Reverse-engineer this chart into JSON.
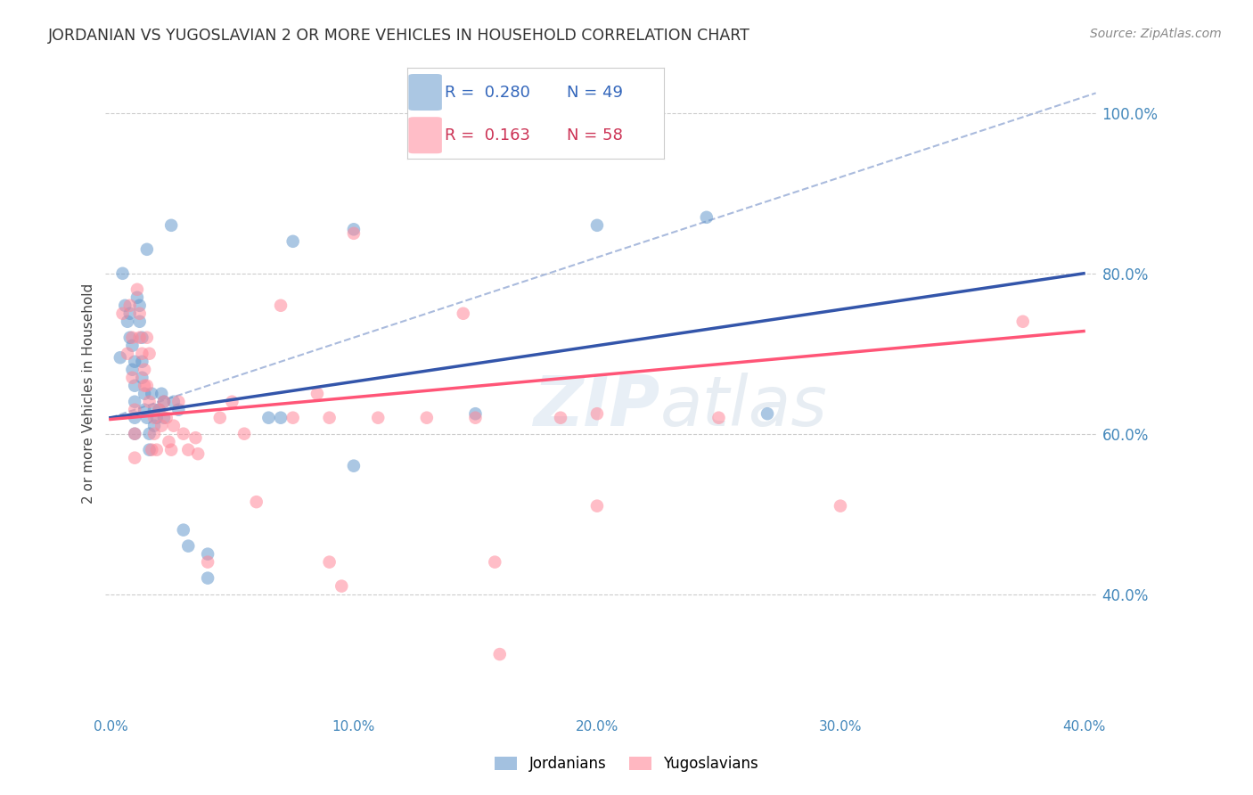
{
  "title": "JORDANIAN VS YUGOSLAVIAN 2 OR MORE VEHICLES IN HOUSEHOLD CORRELATION CHART",
  "source": "Source: ZipAtlas.com",
  "xlabel_legend1": "Jordanians",
  "xlabel_legend2": "Yugoslavians",
  "ylabel": "2 or more Vehicles in Household",
  "xlim": [
    -0.002,
    0.405
  ],
  "ylim": [
    0.25,
    1.05
  ],
  "yticks": [
    0.4,
    0.6,
    0.8,
    1.0
  ],
  "ytick_labels": [
    "40.0%",
    "60.0%",
    "80.0%",
    "100.0%"
  ],
  "xticks": [
    0.0,
    0.1,
    0.2,
    0.3,
    0.4
  ],
  "xtick_labels": [
    "0.0%",
    "10.0%",
    "20.0%",
    "30.0%",
    "40.0%"
  ],
  "R_blue": 0.28,
  "N_blue": 49,
  "R_pink": 0.163,
  "N_pink": 58,
  "watermark": "ZIPatlas",
  "blue_color": "#6699CC",
  "pink_color": "#FF8899",
  "blue_line_color": "#3355AA",
  "pink_line_color": "#FF5577",
  "blue_line_x": [
    0.0,
    0.4
  ],
  "blue_line_y": [
    0.62,
    0.8
  ],
  "pink_line_x": [
    0.0,
    0.4
  ],
  "pink_line_y": [
    0.618,
    0.728
  ],
  "ref_line_x": [
    0.0,
    0.405
  ],
  "ref_line_y": [
    0.62,
    1.025
  ],
  "blue_scatter": [
    [
      0.004,
      0.695
    ],
    [
      0.005,
      0.8
    ],
    [
      0.006,
      0.76
    ],
    [
      0.007,
      0.74
    ],
    [
      0.008,
      0.75
    ],
    [
      0.008,
      0.72
    ],
    [
      0.009,
      0.68
    ],
    [
      0.009,
      0.71
    ],
    [
      0.01,
      0.69
    ],
    [
      0.01,
      0.66
    ],
    [
      0.01,
      0.64
    ],
    [
      0.01,
      0.62
    ],
    [
      0.01,
      0.6
    ],
    [
      0.011,
      0.77
    ],
    [
      0.012,
      0.76
    ],
    [
      0.012,
      0.74
    ],
    [
      0.013,
      0.72
    ],
    [
      0.013,
      0.69
    ],
    [
      0.013,
      0.67
    ],
    [
      0.014,
      0.65
    ],
    [
      0.014,
      0.63
    ],
    [
      0.015,
      0.83
    ],
    [
      0.015,
      0.62
    ],
    [
      0.016,
      0.6
    ],
    [
      0.016,
      0.58
    ],
    [
      0.017,
      0.65
    ],
    [
      0.018,
      0.63
    ],
    [
      0.018,
      0.61
    ],
    [
      0.019,
      0.62
    ],
    [
      0.02,
      0.63
    ],
    [
      0.021,
      0.65
    ],
    [
      0.022,
      0.64
    ],
    [
      0.022,
      0.62
    ],
    [
      0.025,
      0.86
    ],
    [
      0.026,
      0.64
    ],
    [
      0.028,
      0.63
    ],
    [
      0.03,
      0.48
    ],
    [
      0.032,
      0.46
    ],
    [
      0.04,
      0.45
    ],
    [
      0.04,
      0.42
    ],
    [
      0.065,
      0.62
    ],
    [
      0.07,
      0.62
    ],
    [
      0.075,
      0.84
    ],
    [
      0.1,
      0.855
    ],
    [
      0.1,
      0.56
    ],
    [
      0.15,
      0.625
    ],
    [
      0.2,
      0.86
    ],
    [
      0.245,
      0.87
    ],
    [
      0.27,
      0.625
    ]
  ],
  "pink_scatter": [
    [
      0.005,
      0.75
    ],
    [
      0.007,
      0.7
    ],
    [
      0.008,
      0.76
    ],
    [
      0.009,
      0.72
    ],
    [
      0.009,
      0.67
    ],
    [
      0.01,
      0.63
    ],
    [
      0.01,
      0.6
    ],
    [
      0.01,
      0.57
    ],
    [
      0.011,
      0.78
    ],
    [
      0.012,
      0.75
    ],
    [
      0.012,
      0.72
    ],
    [
      0.013,
      0.7
    ],
    [
      0.014,
      0.68
    ],
    [
      0.014,
      0.66
    ],
    [
      0.015,
      0.72
    ],
    [
      0.015,
      0.66
    ],
    [
      0.016,
      0.64
    ],
    [
      0.016,
      0.7
    ],
    [
      0.017,
      0.58
    ],
    [
      0.018,
      0.62
    ],
    [
      0.018,
      0.6
    ],
    [
      0.019,
      0.58
    ],
    [
      0.02,
      0.63
    ],
    [
      0.021,
      0.61
    ],
    [
      0.022,
      0.64
    ],
    [
      0.023,
      0.62
    ],
    [
      0.024,
      0.59
    ],
    [
      0.025,
      0.58
    ],
    [
      0.026,
      0.61
    ],
    [
      0.028,
      0.64
    ],
    [
      0.03,
      0.6
    ],
    [
      0.032,
      0.58
    ],
    [
      0.035,
      0.595
    ],
    [
      0.036,
      0.575
    ],
    [
      0.04,
      0.44
    ],
    [
      0.045,
      0.62
    ],
    [
      0.05,
      0.64
    ],
    [
      0.055,
      0.6
    ],
    [
      0.06,
      0.515
    ],
    [
      0.07,
      0.76
    ],
    [
      0.075,
      0.62
    ],
    [
      0.085,
      0.65
    ],
    [
      0.09,
      0.44
    ],
    [
      0.095,
      0.41
    ],
    [
      0.1,
      0.85
    ],
    [
      0.11,
      0.62
    ],
    [
      0.13,
      0.62
    ],
    [
      0.145,
      0.75
    ],
    [
      0.15,
      0.62
    ],
    [
      0.158,
      0.44
    ],
    [
      0.16,
      0.325
    ],
    [
      0.185,
      0.62
    ],
    [
      0.2,
      0.625
    ],
    [
      0.2,
      0.51
    ],
    [
      0.25,
      0.62
    ],
    [
      0.3,
      0.51
    ],
    [
      0.375,
      0.74
    ],
    [
      0.09,
      0.62
    ]
  ]
}
